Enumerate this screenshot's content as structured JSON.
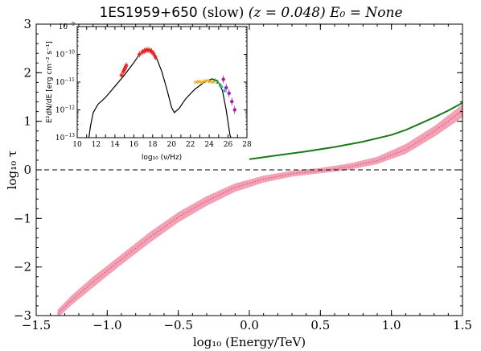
{
  "chart_data": {
    "type": "line",
    "title": {
      "source": "1ES1959+650",
      "qualifier": "(slow)",
      "redshift": "(z = 0.048)",
      "energy": "E₀ = None"
    },
    "xlabel": "log₁₀ (Energy/TeV)",
    "ylabel": "log₁₀ τ",
    "xlim": [
      -1.5,
      1.5
    ],
    "ylim": [
      -3,
      3
    ],
    "xticks": [
      -1.5,
      -1.0,
      -0.5,
      0.0,
      0.5,
      1.0,
      1.5
    ],
    "yticks": [
      -3,
      -2,
      -1,
      0,
      1,
      2,
      3
    ],
    "xtick_labels": [
      "−1.5",
      "−1.0",
      "−0.5",
      "0.0",
      "0.5",
      "1.0",
      "1.5"
    ],
    "ytick_labels": [
      "−3",
      "−2",
      "−1",
      "0",
      "1",
      "2",
      "3"
    ],
    "reference_line_y": 0,
    "series": [
      {
        "kind": "band",
        "color": "#f4a0b5",
        "x": [
          -1.35,
          -1.25,
          -1.1,
          -0.9,
          -0.7,
          -0.5,
          -0.3,
          -0.1,
          0.1,
          0.3,
          0.5,
          0.7,
          0.9,
          1.1,
          1.3,
          1.5
        ],
        "lower": [
          -3.05,
          -2.78,
          -2.42,
          -1.95,
          -1.5,
          -1.08,
          -0.74,
          -0.45,
          -0.26,
          -0.14,
          -0.07,
          0.0,
          0.12,
          0.33,
          0.68,
          1.08
        ],
        "upper": [
          -2.88,
          -2.58,
          -2.2,
          -1.74,
          -1.28,
          -0.87,
          -0.54,
          -0.28,
          -0.12,
          -0.02,
          0.04,
          0.13,
          0.27,
          0.53,
          0.9,
          1.35
        ]
      },
      {
        "kind": "dotted",
        "color": "#c0506a",
        "x": [
          -1.35,
          -1.25,
          -1.1,
          -0.9,
          -0.7,
          -0.5,
          -0.3,
          -0.1,
          0.1,
          0.3,
          0.5,
          0.7,
          0.9,
          1.1,
          1.3,
          1.5
        ],
        "y": [
          -2.96,
          -2.68,
          -2.31,
          -1.84,
          -1.39,
          -0.97,
          -0.64,
          -0.36,
          -0.19,
          -0.08,
          -0.02,
          0.06,
          0.19,
          0.42,
          0.79,
          1.22
        ]
      },
      {
        "kind": "line",
        "color": "#1a7a1a",
        "x": [
          0.0,
          0.2,
          0.4,
          0.6,
          0.8,
          1.0,
          1.1,
          1.2,
          1.3,
          1.4,
          1.5
        ],
        "y": [
          0.22,
          0.3,
          0.38,
          0.47,
          0.58,
          0.72,
          0.82,
          0.95,
          1.08,
          1.22,
          1.38
        ]
      }
    ],
    "inset": {
      "type": "line",
      "xlabel": "log₁₀ (ν/Hz)",
      "ylabel": "E²dN/dE [erg cm⁻² s⁻¹]",
      "xlim": [
        10,
        28
      ],
      "ylim_log10": [
        -13,
        -9
      ],
      "xticks": [
        10,
        11,
        12,
        13,
        14,
        15,
        16,
        17,
        18,
        19,
        20,
        21,
        22,
        23,
        24,
        25,
        26,
        27,
        28
      ],
      "xtick_labels": [
        "10",
        "",
        "12",
        "",
        "14",
        "",
        "16",
        "",
        "18",
        "",
        "20",
        "",
        "22",
        "",
        "24",
        "",
        "26",
        "",
        "28"
      ],
      "yticks_log10": [
        -13,
        -12,
        -11,
        -10,
        -9
      ],
      "ytick_labels": [
        {
          "base": "10",
          "exp": "−13"
        },
        {
          "base": "10",
          "exp": "−12"
        },
        {
          "base": "10",
          "exp": "−11"
        },
        {
          "base": "10",
          "exp": "−10"
        },
        {
          "base": "10",
          "exp": "−9"
        }
      ],
      "model": {
        "color": "#000000",
        "x": [
          11.2,
          11.4,
          11.7,
          12.2,
          13,
          14,
          15,
          16,
          16.5,
          17,
          17.5,
          18,
          18.5,
          19,
          19.5,
          20,
          20.3,
          20.8,
          21.5,
          22.5,
          23.5,
          24.3,
          24.9,
          25.4,
          25.8,
          26.2,
          26.6
        ],
        "log10_y": [
          -13.1,
          -12.6,
          -12.1,
          -11.8,
          -11.55,
          -11.15,
          -10.75,
          -10.3,
          -10.05,
          -9.87,
          -9.82,
          -9.92,
          -10.2,
          -10.65,
          -11.25,
          -11.9,
          -12.1,
          -11.95,
          -11.6,
          -11.25,
          -11.0,
          -10.88,
          -10.95,
          -11.3,
          -12.0,
          -12.9,
          -13.3
        ]
      },
      "data_groups": [
        {
          "name": "optical",
          "color": "#e8201e",
          "marker": "star",
          "x": [
            14.7,
            14.9,
            15.0,
            15.1,
            15.2,
            16.6,
            16.9,
            17.1,
            17.3,
            17.5,
            17.7,
            17.9,
            18.1,
            18.3
          ],
          "log10_y": [
            -10.75,
            -10.62,
            -10.55,
            -10.48,
            -10.4,
            -10.0,
            -9.92,
            -9.88,
            -9.85,
            -9.84,
            -9.86,
            -9.9,
            -9.98,
            -10.1
          ]
        },
        {
          "name": "gev",
          "color": "#f0b020",
          "marker": "x",
          "x": [
            22.6,
            22.9,
            23.2,
            23.5,
            23.8,
            24.1,
            24.4
          ],
          "log10_y": [
            -11.0,
            -10.98,
            -11.0,
            -10.97,
            -10.95,
            -10.98,
            -11.0
          ]
        },
        {
          "name": "green",
          "color": "#3aa03a",
          "marker": "tri",
          "x": [
            24.6,
            24.9,
            25.2
          ],
          "log10_y": [
            -10.92,
            -11.0,
            -11.1
          ]
        },
        {
          "name": "cyan",
          "color": "#20b0c0",
          "marker": "tri",
          "x": [
            25.3,
            25.6
          ],
          "log10_y": [
            -11.15,
            -11.3
          ]
        },
        {
          "name": "vhe",
          "color": "#a020a8",
          "marker": "circle",
          "x": [
            25.5,
            25.8,
            26.1,
            26.4,
            26.7
          ],
          "log10_y": [
            -10.9,
            -11.2,
            -11.4,
            -11.7,
            -12.0
          ]
        }
      ]
    }
  }
}
